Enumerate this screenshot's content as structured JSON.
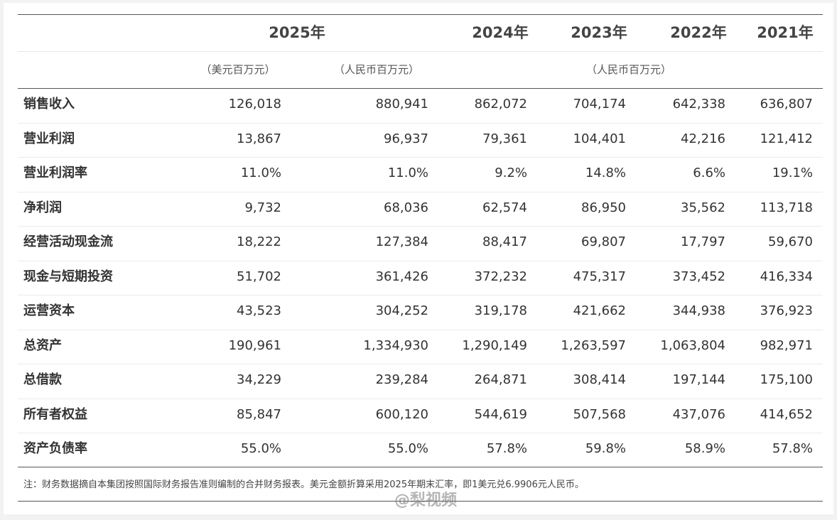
{
  "header": {
    "years": [
      "2025年",
      "2024年",
      "2023年",
      "2022年",
      "2021年"
    ],
    "units": [
      "（美元百万元）",
      "（人民币百万元）",
      "（人民币百万元）"
    ]
  },
  "table": {
    "rows": [
      [
        "销售收入",
        "126,018",
        "880,941",
        "862,072",
        "704,174",
        "642,338",
        "636,807"
      ],
      [
        "营业利润",
        "13,867",
        "96,937",
        "79,361",
        "104,401",
        "42,216",
        "121,412"
      ],
      [
        "营业利润率",
        "11.0%",
        "11.0%",
        "9.2%",
        "14.8%",
        "6.6%",
        "19.1%"
      ],
      [
        "净利润",
        "9,732",
        "68,036",
        "62,574",
        "86,950",
        "35,562",
        "113,718"
      ],
      [
        "经营活动现金流",
        "18,222",
        "127,384",
        "88,417",
        "69,807",
        "17,797",
        "59,670"
      ],
      [
        "现金与短期投资",
        "51,702",
        "361,426",
        "372,232",
        "475,317",
        "373,452",
        "416,334"
      ],
      [
        "运营资本",
        "43,523",
        "304,252",
        "319,178",
        "421,662",
        "344,938",
        "376,923"
      ],
      [
        "总资产",
        "190,961",
        "1,334,930",
        "1,290,149",
        "1,263,597",
        "1,063,804",
        "982,971"
      ],
      [
        "总借款",
        "34,229",
        "239,284",
        "264,871",
        "308,414",
        "197,144",
        "175,100"
      ],
      [
        "所有者权益",
        "85,847",
        "600,120",
        "544,619",
        "507,568",
        "437,076",
        "414,652"
      ],
      [
        "资产负债率",
        "55.0%",
        "55.0%",
        "57.8%",
        "59.8%",
        "58.9%",
        "57.8%"
      ]
    ]
  },
  "note": "注：财务数据摘自本集团按照国际财务报告准则编制的合并财务报表。美元金额折算采用2025年期末汇率，即1美元兑6.9906元人民币。",
  "watermark": "@梨视频"
}
